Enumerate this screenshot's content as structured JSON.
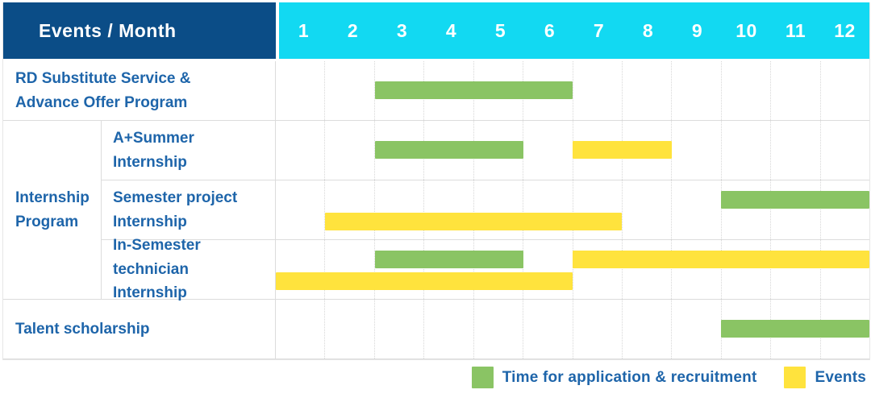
{
  "header": {
    "title": "Events / Month",
    "months": [
      "1",
      "2",
      "3",
      "4",
      "5",
      "6",
      "7",
      "8",
      "9",
      "10",
      "11",
      "12"
    ]
  },
  "chart_data": {
    "type": "gantt",
    "x_unit": "month",
    "x_range": [
      1,
      12
    ],
    "rows": [
      {
        "group": null,
        "label": "RD Substitute Service &\nAdvance Offer Program",
        "bars": [
          {
            "kind": "application",
            "start_month": 3,
            "end_month": 6,
            "lane": "center"
          }
        ]
      },
      {
        "group": "Internship\nProgram",
        "label": "A+Summer\nInternship",
        "bars": [
          {
            "kind": "application",
            "start_month": 3,
            "end_month": 5,
            "lane": "center"
          },
          {
            "kind": "event",
            "start_month": 7,
            "end_month": 8,
            "lane": "center"
          }
        ]
      },
      {
        "group": "Internship\nProgram",
        "label": "Semester project\nInternship",
        "bars": [
          {
            "kind": "application",
            "start_month": 10,
            "end_month": 12,
            "lane": "top"
          },
          {
            "kind": "event",
            "start_month": 2,
            "end_month": 7,
            "lane": "bottom"
          }
        ]
      },
      {
        "group": "Internship\nProgram",
        "label": "In-Semester\ntechnician Internship",
        "bars": [
          {
            "kind": "application",
            "start_month": 3,
            "end_month": 5,
            "lane": "top"
          },
          {
            "kind": "event",
            "start_month": 7,
            "end_month": 12,
            "lane": "top"
          },
          {
            "kind": "event",
            "start_month": 1,
            "end_month": 6,
            "lane": "bottom"
          }
        ]
      },
      {
        "group": null,
        "label": "Talent scholarship",
        "bars": [
          {
            "kind": "application",
            "start_month": 10,
            "end_month": 12,
            "lane": "center"
          }
        ]
      }
    ]
  },
  "legend": {
    "items": [
      {
        "kind": "application",
        "label": "Time for application & recruitment"
      },
      {
        "kind": "event",
        "label": "Events"
      }
    ]
  },
  "colors": {
    "header_bg": "#0b4d87",
    "months_bg": "#12d9f2",
    "label_text": "#1e65aa",
    "application_green": "#8ac464",
    "event_yellow": "#ffe33d",
    "grid_line": "#dcdcdc",
    "header_text": "#ffffff"
  }
}
